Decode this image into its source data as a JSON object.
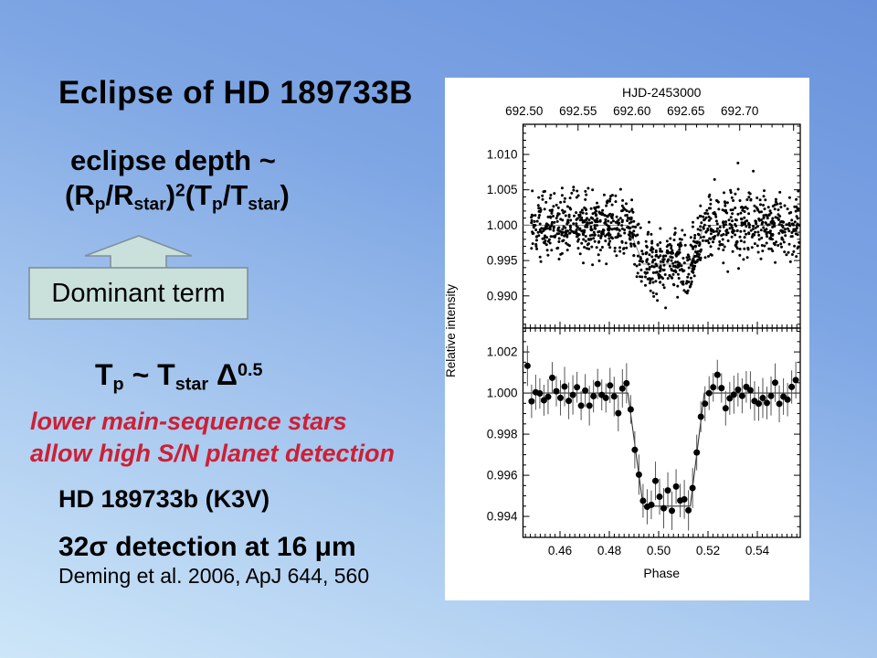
{
  "slide": {
    "title": "Eclipse of HD 189733B",
    "depth_label": "eclipse depth ~",
    "depth_formula": [
      [
        "(R",
        "n"
      ],
      [
        "p",
        "sub"
      ],
      [
        "/R",
        "n"
      ],
      [
        "star",
        "sub"
      ],
      [
        ")",
        "n"
      ],
      [
        "2",
        "sup"
      ],
      [
        "(T",
        "n"
      ],
      [
        "p",
        "sub"
      ],
      [
        "/T",
        "n"
      ],
      [
        "star",
        "sub"
      ],
      [
        ")",
        "n"
      ]
    ],
    "callout": {
      "label": "Dominant term",
      "fill": "#c9e1da",
      "border": "#7f8f9c"
    },
    "tp_formula": [
      [
        "T",
        "n"
      ],
      [
        "p",
        "sub"
      ],
      [
        " ~ T",
        "n"
      ],
      [
        "star",
        "sub"
      ],
      [
        " Δ",
        "n"
      ],
      [
        "0.5",
        "sup"
      ]
    ],
    "note_line1": "lower main-sequence stars",
    "note_line2": "allow high S/N planet detection",
    "note_color": "#cc2036",
    "target_line": "HD 189733b (K3V)",
    "detection_line": "32σ detection at 16 μm",
    "citation": "Deming et al. 2006, ApJ 644, 560",
    "background": {
      "top": "#6a92dc",
      "mid": "#a9c9ef",
      "bottom": "#cde6f8"
    }
  },
  "chart_data": {
    "type": "scatter",
    "title": "HJD-2453000",
    "xlabel": "Phase",
    "ylabel": "Relative intensity",
    "grid": false,
    "legend": "none",
    "top_axis": {
      "label": "HJD-2453000",
      "ticks": [
        692.5,
        692.55,
        692.6,
        692.65,
        692.7
      ],
      "range": [
        692.4989,
        692.7562
      ],
      "minor_step": 0.01
    },
    "x_axis": {
      "label": "Phase",
      "ticks": [
        0.46,
        0.48,
        0.5,
        0.52,
        0.54
      ],
      "range": [
        0.445,
        0.5574
      ],
      "minor_step": 0.002
    },
    "model": {
      "baseline": 1.0,
      "depth": 0.0055,
      "ingress": [
        0.4875,
        0.4937
      ],
      "egress": [
        0.5128,
        0.5185
      ]
    },
    "panels": [
      {
        "name": "unbinned-light-curve",
        "style": "scatter",
        "y_ticks": [
          1.01,
          1.005,
          1.0,
          0.995,
          0.99
        ],
        "y_minor_step": 0.001,
        "ylim": [
          0.98545,
          1.01426
        ],
        "tick_decimals": 3,
        "points": {
          "n": 1150,
          "x_range": [
            0.4482,
            0.557
          ],
          "baseline": 1.0,
          "noise_sigma": 0.00225,
          "seed": 42,
          "marker_radius": 1.5
        }
      },
      {
        "name": "binned-light-curve",
        "style": "scatter-errorbars",
        "y_ticks": [
          1.002,
          1.0,
          0.998,
          0.996,
          0.994
        ],
        "y_minor_step": 0.0005,
        "ylim": [
          0.99298,
          1.00316
        ],
        "tick_decimals": 3,
        "points": {
          "n": 66,
          "x_range": [
            0.4468,
            0.5556
          ],
          "noise_sigma": 0.00048,
          "error_bar": 0.00082,
          "seed": 7,
          "marker_radius": 3.5
        }
      }
    ]
  }
}
